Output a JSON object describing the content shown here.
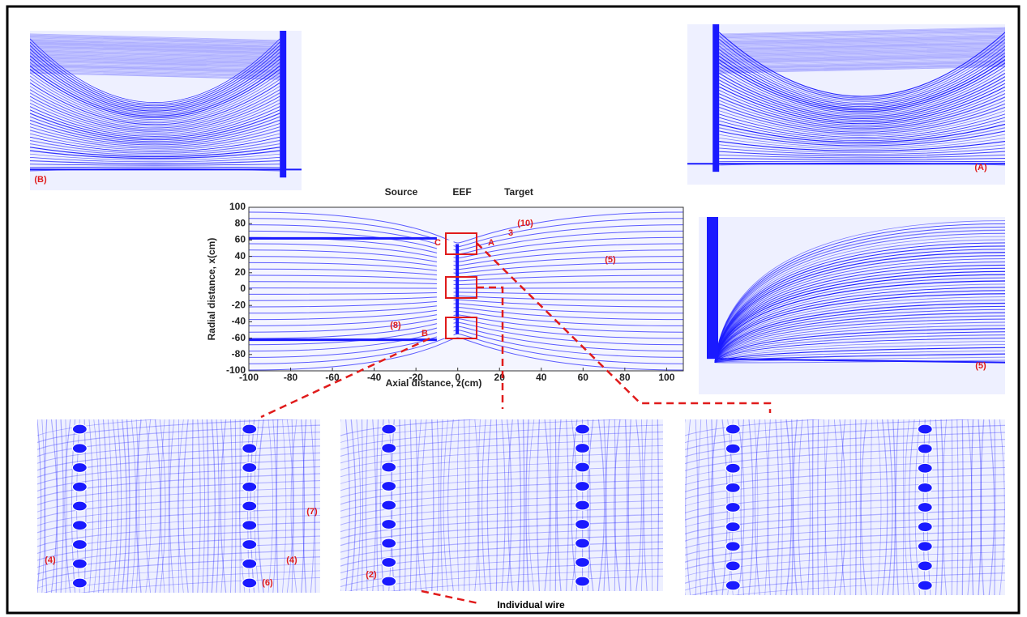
{
  "chart_data": {
    "type": "streamplot",
    "xlabel": "Axial distance, z(cm)",
    "ylabel": "Radial distance, x(cm)",
    "xlim": [
      -100,
      108
    ],
    "ylim": [
      -100,
      100
    ],
    "xticks": [
      -100,
      -80,
      -60,
      -40,
      -20,
      0,
      20,
      40,
      60,
      80,
      100
    ],
    "yticks": [
      -100,
      -80,
      -60,
      -40,
      -20,
      0,
      20,
      40,
      60,
      80,
      100
    ],
    "region_labels": [
      "Source",
      "EEF",
      "Target"
    ],
    "annotations": [
      "C",
      "A",
      "B",
      "(10)",
      "3",
      "(5)",
      "(8)"
    ],
    "color": "#1a1aff"
  },
  "panels": [
    {
      "labels": [
        "(B)"
      ]
    },
    {
      "labels": [
        "(A)"
      ]
    },
    {
      "labels": [
        "(5)"
      ]
    },
    {
      "labels": [
        "(4)",
        "(4)",
        "(7)",
        "(6)"
      ]
    },
    {
      "labels": [
        "(2)"
      ]
    },
    {
      "labels": []
    }
  ],
  "caption": "Individual wire"
}
